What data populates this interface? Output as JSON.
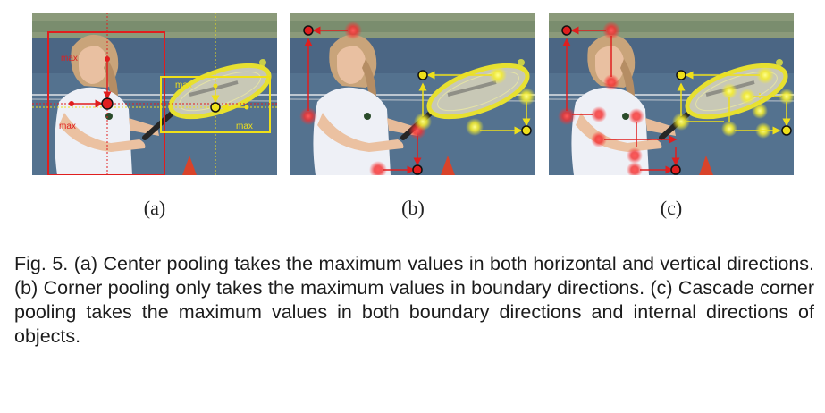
{
  "figure": {
    "panels": [
      {
        "id": "a",
        "label": "(a)",
        "annotations": [
          "max",
          "max",
          "max",
          "max"
        ]
      },
      {
        "id": "b",
        "label": "(b)"
      },
      {
        "id": "c",
        "label": "(c)"
      }
    ],
    "caption": "Fig. 5. (a) Center pooling takes the maximum values in both horizontal and vertical directions. (b) Corner pooling only takes the maximum values in boundary directions. (c) Cascade corner pooling takes the maximum values in both boundary directions and internal directions of objects.",
    "colors": {
      "red": "#e01e1e",
      "yellow": "#f2e21a",
      "court": "#4f6a8a"
    }
  }
}
